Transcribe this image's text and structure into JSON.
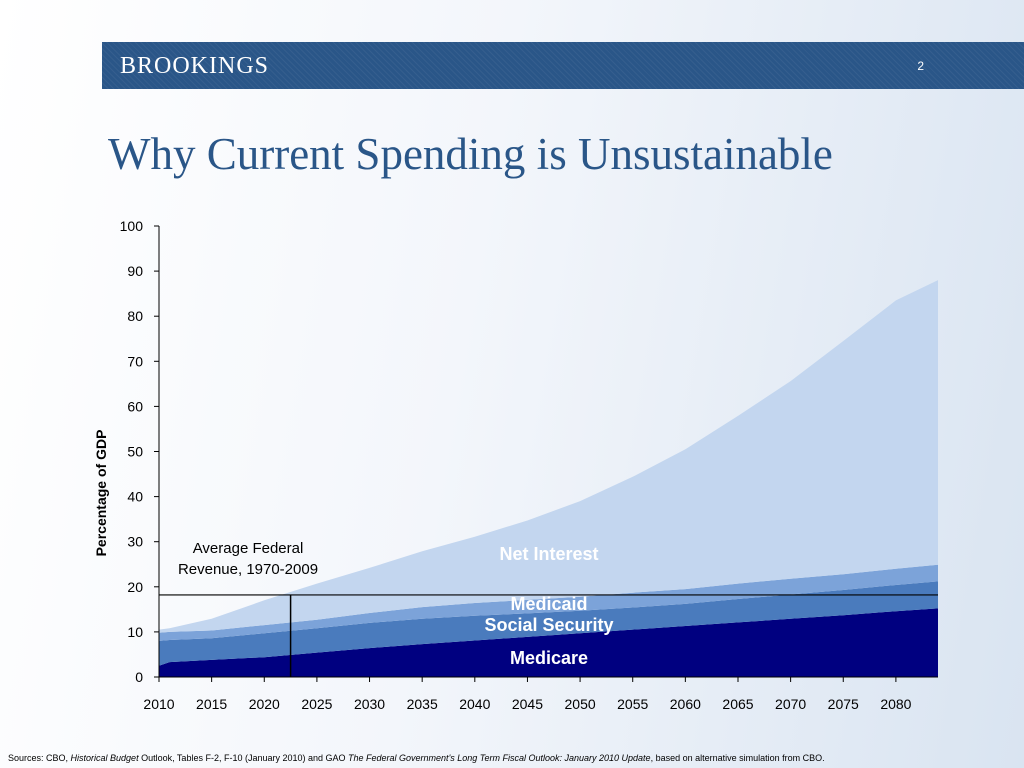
{
  "header": {
    "logo": "BROOKINGS",
    "page_number": "2"
  },
  "title": "Why Current Spending is Unsustainable",
  "colors": {
    "banner": "#2a5688",
    "title": "#2a5688",
    "medicare": "#000080",
    "social_security": "#4a7bbd",
    "medicaid": "#7ca3d9",
    "net_interest": "#c3d6ef"
  },
  "chart_data": {
    "type": "area",
    "stacked": true,
    "ylabel": "Percentage of GDP",
    "xlabel": "",
    "ylim": [
      0,
      100
    ],
    "xlim": [
      2010,
      2084
    ],
    "y_ticks": [
      "0",
      "10",
      "20",
      "30",
      "40",
      "50",
      "60",
      "70",
      "80",
      "90",
      "100"
    ],
    "x_ticks": [
      "2010",
      "2015",
      "2020",
      "2025",
      "2030",
      "2035",
      "2040",
      "2045",
      "2050",
      "2055",
      "2060",
      "2065",
      "2070",
      "2075",
      "2080"
    ],
    "x": [
      2010,
      2011,
      2015,
      2020,
      2025,
      2030,
      2035,
      2040,
      2045,
      2050,
      2055,
      2060,
      2065,
      2070,
      2075,
      2080,
      2084
    ],
    "series": [
      {
        "name": "Medicare",
        "label": "Medicare",
        "color": "#000080",
        "values": [
          2.5,
          3.3,
          3.8,
          4.4,
          5.4,
          6.4,
          7.3,
          8.1,
          8.9,
          9.7,
          10.5,
          11.3,
          12.1,
          12.9,
          13.7,
          14.6,
          15.2
        ]
      },
      {
        "name": "Social Security",
        "label": "Social Security",
        "color": "#4a7bbd",
        "values": [
          5.5,
          4.9,
          4.8,
          5.3,
          5.4,
          5.6,
          5.6,
          5.5,
          5.2,
          5.0,
          4.9,
          4.9,
          5.2,
          5.4,
          5.6,
          5.8,
          6.0
        ]
      },
      {
        "name": "Medicaid",
        "label": "Medicaid",
        "color": "#7ca3d9",
        "values": [
          1.8,
          1.8,
          1.7,
          1.8,
          1.9,
          2.2,
          2.6,
          2.8,
          3.0,
          3.1,
          3.3,
          3.3,
          3.4,
          3.5,
          3.5,
          3.6,
          3.7
        ]
      },
      {
        "name": "Net Interest",
        "label": "Net Interest",
        "color": "#c3d6ef",
        "values": [
          0.7,
          0.8,
          2.6,
          5.5,
          8.0,
          10.0,
          12.4,
          14.7,
          17.6,
          21.2,
          25.7,
          31.0,
          37.2,
          43.8,
          51.7,
          59.5,
          63.1
        ]
      }
    ],
    "reference_line": {
      "value": 18.2,
      "label_line1": "Average Federal",
      "label_line2": "Revenue,  1970-2009"
    },
    "marker_year": 2022.5
  },
  "footer": {
    "prefix": "Sources: CBO, ",
    "source1_title": "Historical Budget",
    "source1_rest": " Outlook, Tables F-2, F-10 (January 2010) and GAO ",
    "source2_title": "The Federal Government's Long Term Fiscal Outlook: January 2010 Update",
    "suffix": ", based on alternative simulation from CBO."
  }
}
